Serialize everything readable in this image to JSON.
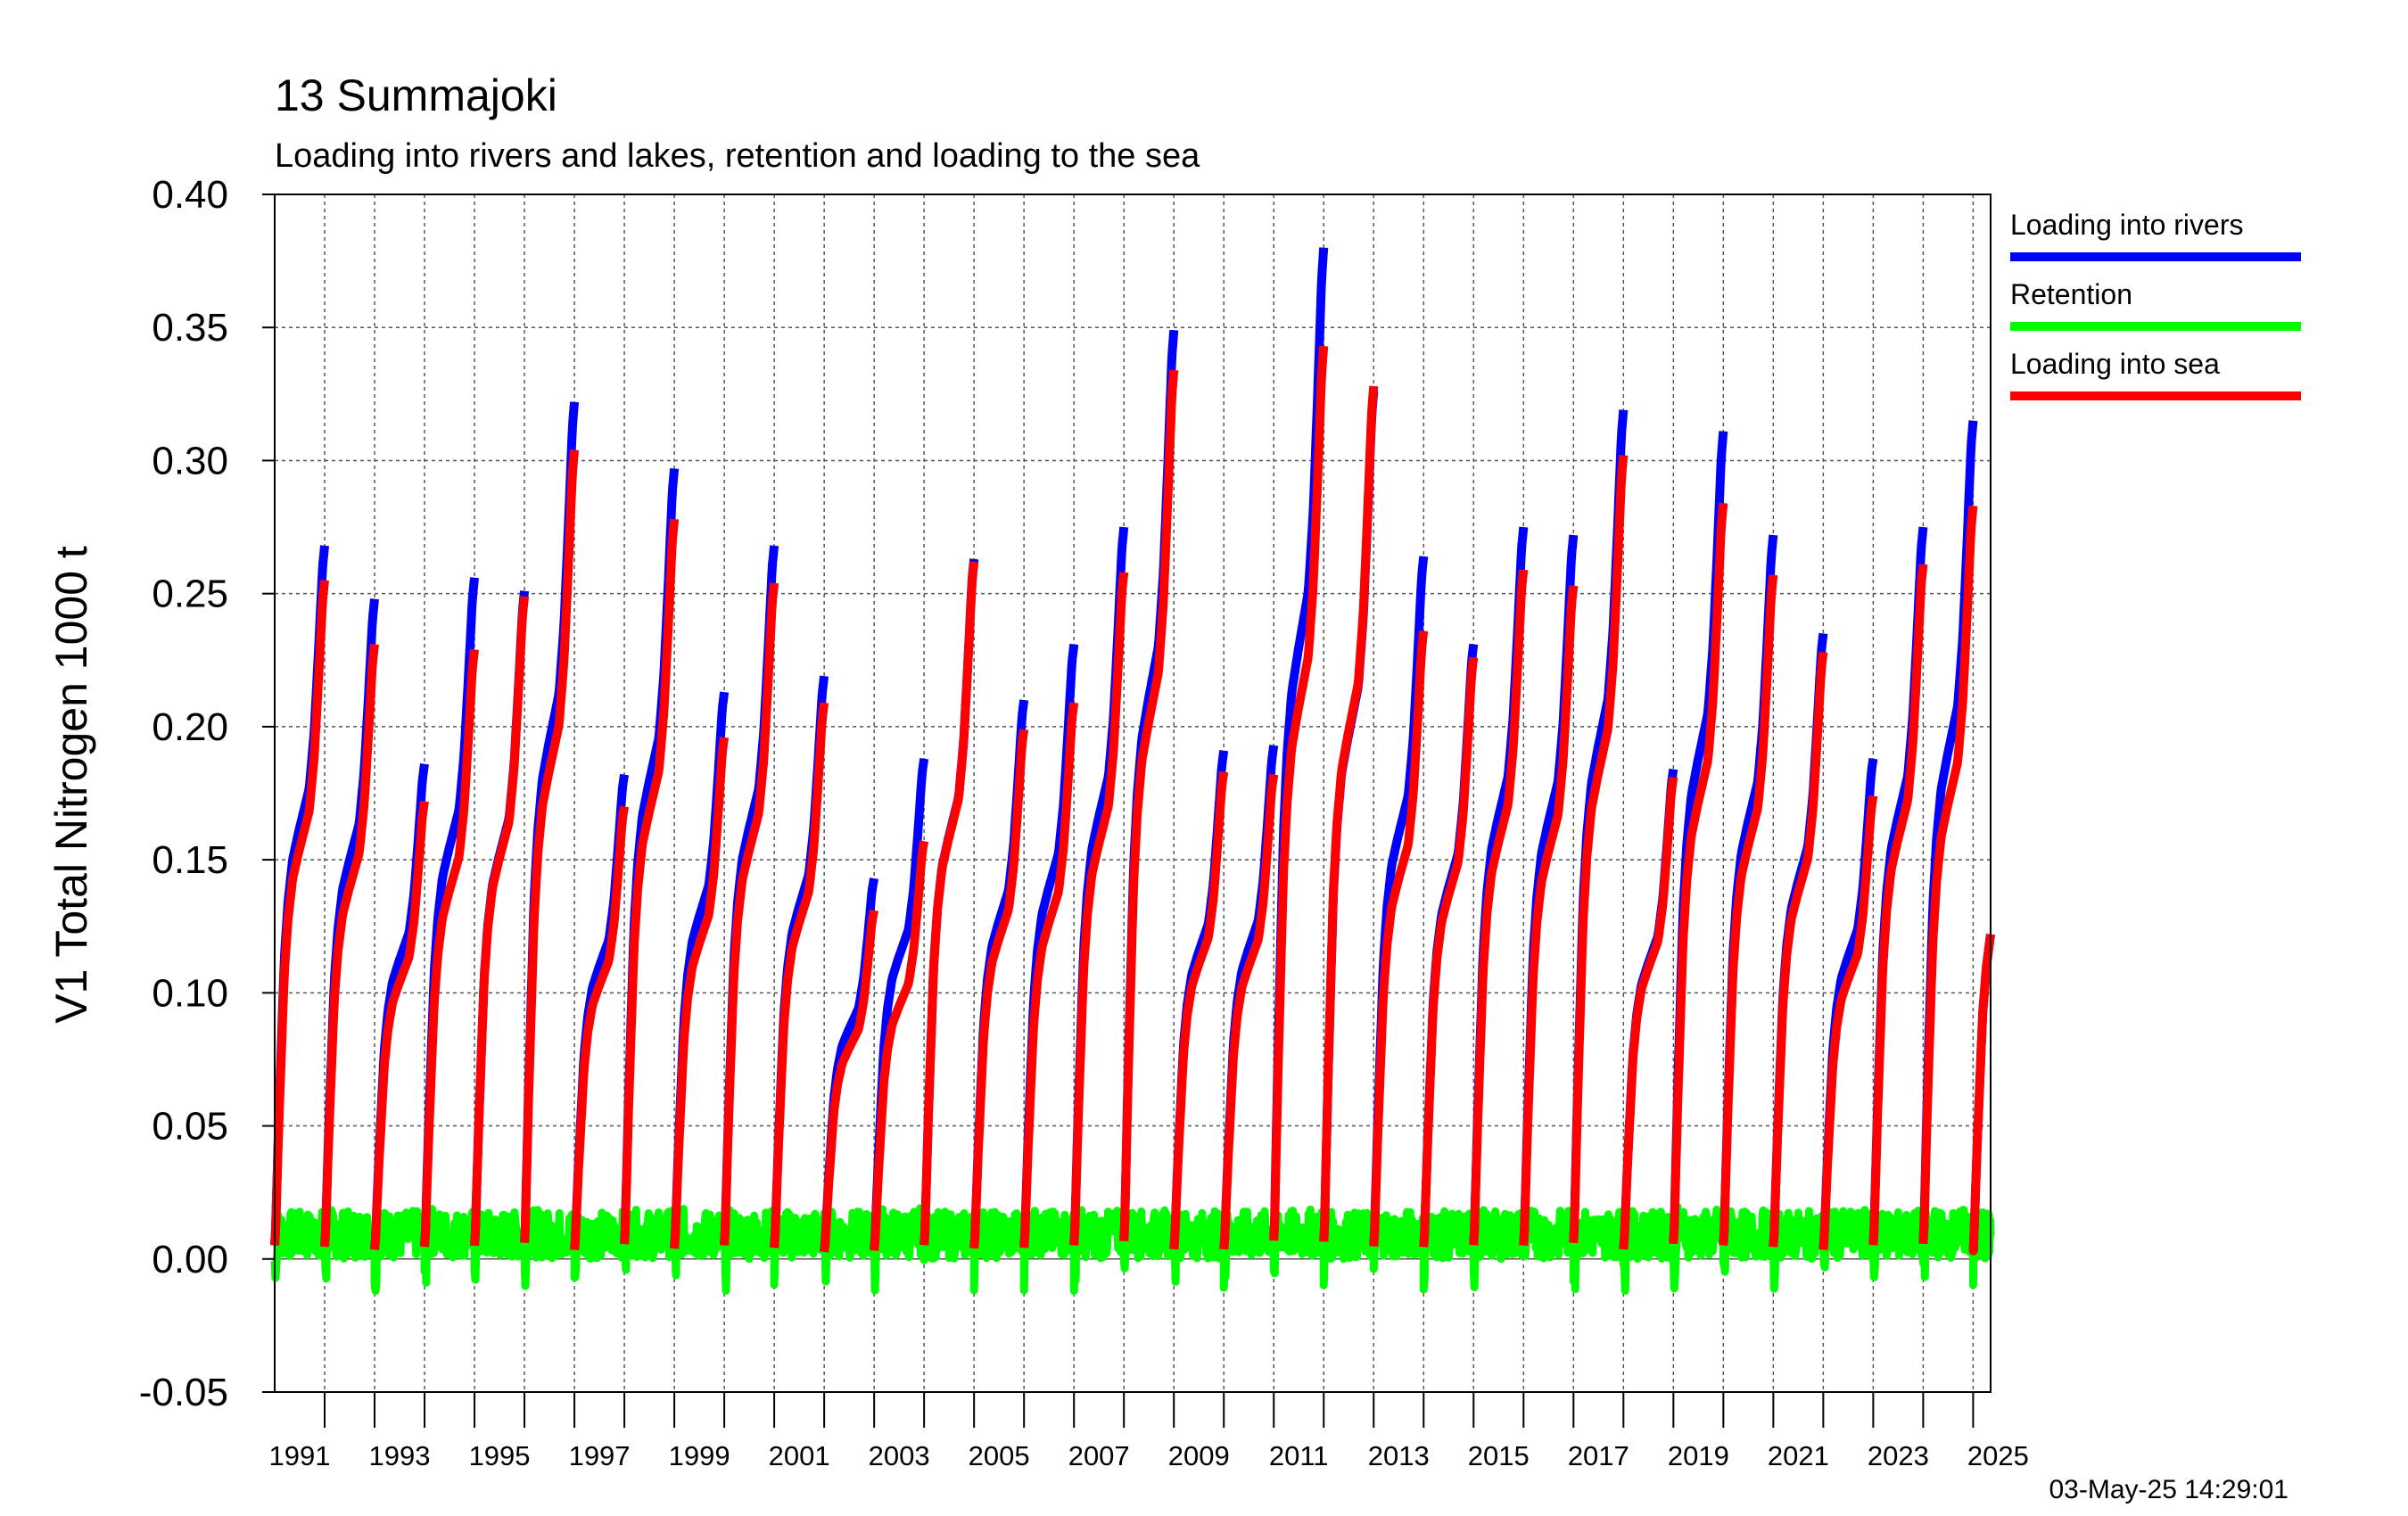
{
  "chart_data": {
    "type": "line",
    "title": "13 Summajoki",
    "subtitle": "Loading into rivers and lakes, retention and loading to the sea",
    "ylabel": "V1 Total Nitrogen 1000 t",
    "xlabel": "",
    "ylim": [
      -0.05,
      0.4
    ],
    "xlim": [
      1990,
      2024.35
    ],
    "yticks": [
      "0.40",
      "0.35",
      "0.30",
      "0.25",
      "0.20",
      "0.15",
      "0.10",
      "0.05",
      "0.00",
      "-0.05"
    ],
    "xticks": [
      "1991",
      "1993",
      "1995",
      "1997",
      "1999",
      "2001",
      "2003",
      "2005",
      "2007",
      "2009",
      "2011",
      "2013",
      "2015",
      "2017",
      "2019",
      "2021",
      "2023",
      "2025"
    ],
    "grid": true,
    "legend_position": "right",
    "timestamp": "03-May-25 14:29:01",
    "years": [
      1990,
      1991,
      1992,
      1993,
      1994,
      1995,
      1996,
      1997,
      1998,
      1999,
      2000,
      2001,
      2002,
      2003,
      2004,
      2005,
      2006,
      2007,
      2008,
      2009,
      2010,
      2011,
      2012,
      2013,
      2014,
      2015,
      2016,
      2017,
      2018,
      2019,
      2020,
      2021,
      2022,
      2023,
      2024
    ],
    "annual_totals": {
      "rivers": [
        0.268,
        0.248,
        0.186,
        0.256,
        0.251,
        0.322,
        0.182,
        0.297,
        0.213,
        0.268,
        0.219,
        0.143,
        0.188,
        0.263,
        0.21,
        0.231,
        0.275,
        0.349,
        0.191,
        0.193,
        0.38,
        0.326,
        0.264,
        0.231,
        0.275,
        0.272,
        0.319,
        0.184,
        0.311,
        0.272,
        0.235,
        0.188,
        0.275,
        0.315,
        0.122
      ],
      "sea": [
        0.255,
        0.231,
        0.172,
        0.229,
        0.249,
        0.304,
        0.17,
        0.278,
        0.196,
        0.254,
        0.209,
        0.131,
        0.157,
        0.262,
        0.199,
        0.209,
        0.258,
        0.334,
        0.183,
        0.182,
        0.343,
        0.328,
        0.236,
        0.226,
        0.259,
        0.253,
        0.302,
        0.181,
        0.284,
        0.257,
        0.228,
        0.174,
        0.261,
        0.283,
        0.122
      ]
    },
    "series": [
      {
        "name": "Loading into rivers",
        "color": "#0000ff"
      },
      {
        "name": "Retention",
        "color": "#00ff00"
      },
      {
        "name": "Loading into sea",
        "color": "#ff0000"
      }
    ]
  }
}
